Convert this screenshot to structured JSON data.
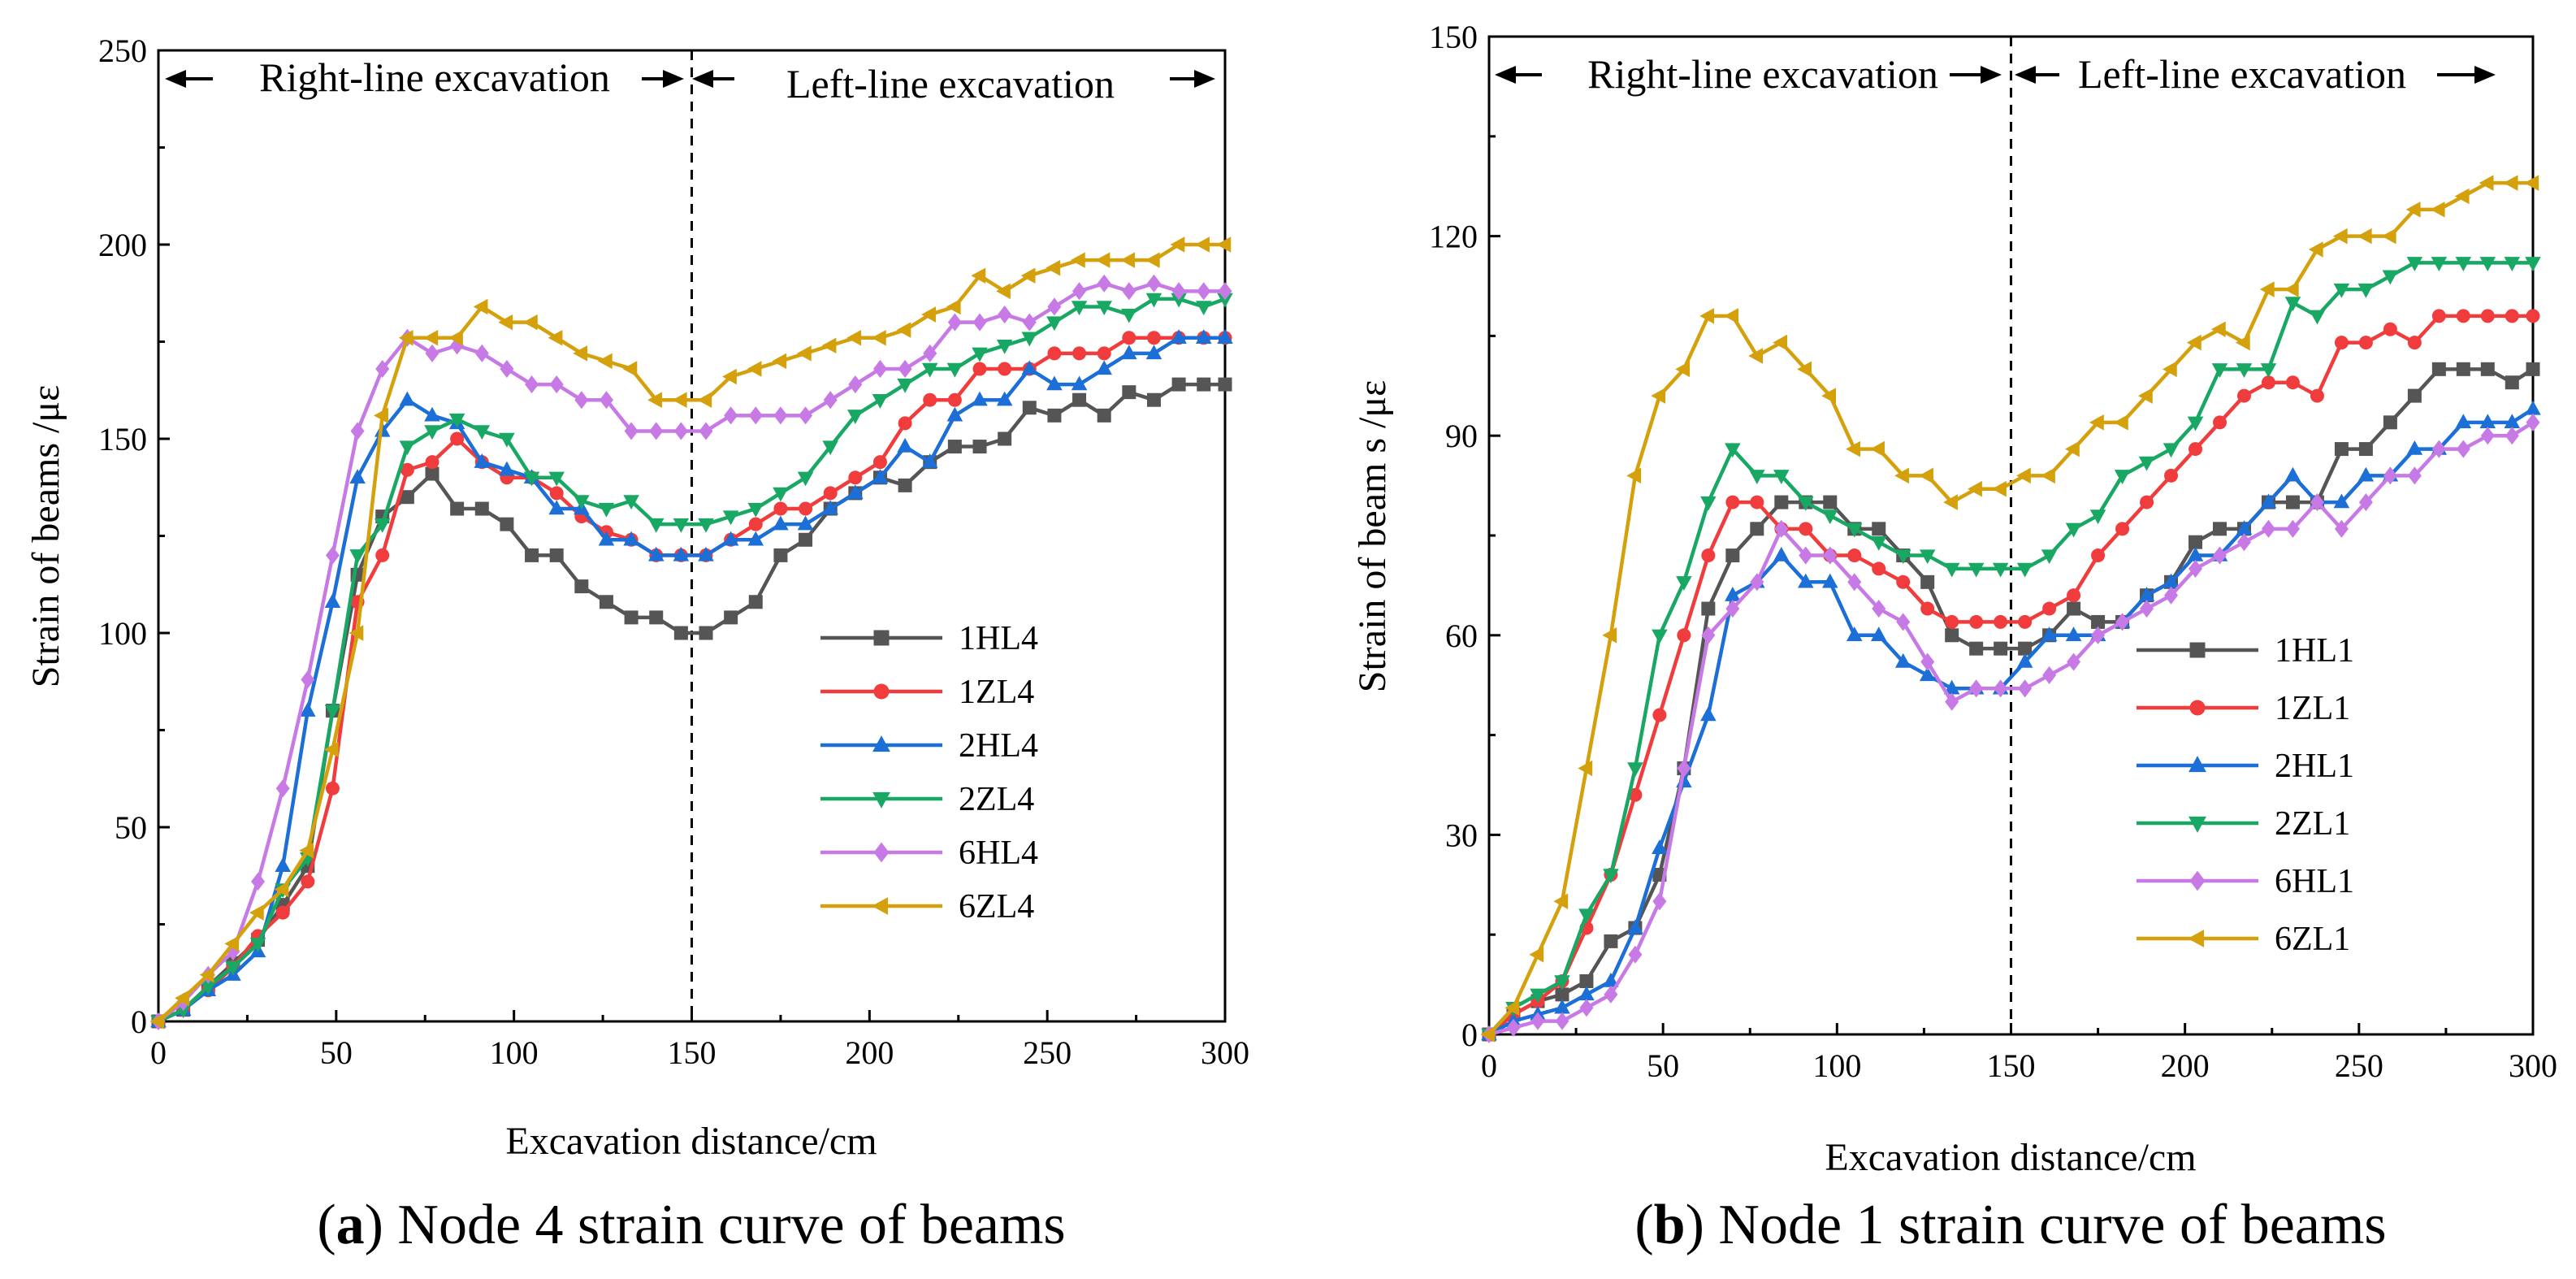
{
  "chart_data": [
    {
      "type": "line",
      "panel_letter": "a",
      "caption": ") Node 4 strain curve of beams",
      "caption_open": "(",
      "xlabel": "Excavation distance/cm",
      "ylabel": "Strain of beams /με",
      "xlim": [
        0,
        300
      ],
      "ylim": [
        0,
        250
      ],
      "xticks": [
        0,
        50,
        100,
        150,
        200,
        250,
        300
      ],
      "yticks": [
        0,
        50,
        100,
        150,
        200,
        250
      ],
      "divider_x": 150,
      "annotations": {
        "left": "Right-line excavation",
        "right": "Left-line excavation"
      },
      "legend_position": "right-center",
      "x": [
        0,
        7,
        14,
        21,
        28,
        35,
        42,
        49,
        56,
        63,
        70,
        77,
        84,
        91,
        98,
        105,
        112,
        119,
        126,
        133,
        140,
        147,
        154,
        161,
        168,
        175,
        182,
        189,
        196,
        203,
        210,
        217,
        224,
        231,
        238,
        245,
        252,
        259,
        266,
        273,
        280,
        287,
        294,
        300
      ],
      "series": [
        {
          "name": "1HL4",
          "color": "#555555",
          "marker": "square",
          "values": [
            0,
            3,
            9,
            15,
            21,
            30,
            40,
            80,
            115,
            130,
            135,
            141,
            132,
            132,
            128,
            120,
            120,
            112,
            108,
            104,
            104,
            100,
            100,
            104,
            108,
            120,
            124,
            132,
            136,
            140,
            138,
            144,
            148,
            148,
            150,
            158,
            156,
            160,
            156,
            162,
            160,
            164,
            164,
            164
          ]
        },
        {
          "name": "1ZL4",
          "color": "#f03c3c",
          "marker": "circle",
          "values": [
            0,
            3,
            8,
            14,
            22,
            28,
            36,
            60,
            108,
            120,
            142,
            144,
            150,
            144,
            140,
            140,
            136,
            130,
            126,
            124,
            120,
            120,
            120,
            124,
            128,
            132,
            132,
            136,
            140,
            144,
            154,
            160,
            160,
            168,
            168,
            168,
            172,
            172,
            172,
            176,
            176,
            176,
            176,
            176
          ]
        },
        {
          "name": "2HL4",
          "color": "#1c6fd6",
          "marker": "triangle-up",
          "values": [
            0,
            3,
            8,
            12,
            18,
            40,
            80,
            108,
            140,
            152,
            160,
            156,
            154,
            144,
            142,
            140,
            132,
            132,
            124,
            124,
            120,
            120,
            120,
            124,
            124,
            128,
            128,
            132,
            136,
            140,
            148,
            144,
            156,
            160,
            160,
            168,
            164,
            164,
            168,
            172,
            172,
            176,
            176,
            176
          ]
        },
        {
          "name": "2ZL4",
          "color": "#19a864",
          "marker": "triangle-down",
          "values": [
            0,
            3,
            9,
            14,
            20,
            34,
            42,
            80,
            120,
            128,
            148,
            152,
            155,
            152,
            150,
            140,
            140,
            134,
            132,
            134,
            128,
            128,
            128,
            130,
            132,
            136,
            140,
            148,
            156,
            160,
            164,
            168,
            168,
            172,
            174,
            176,
            180,
            184,
            184,
            182,
            186,
            186,
            184,
            186
          ]
        },
        {
          "name": "6HL4",
          "color": "#c77ae6",
          "marker": "diamond",
          "values": [
            0,
            5,
            12,
            18,
            36,
            60,
            88,
            120,
            152,
            168,
            176,
            172,
            174,
            172,
            168,
            164,
            164,
            160,
            160,
            152,
            152,
            152,
            152,
            156,
            156,
            156,
            156,
            160,
            164,
            168,
            168,
            172,
            180,
            180,
            182,
            180,
            184,
            188,
            190,
            188,
            190,
            188,
            188,
            188
          ]
        },
        {
          "name": "6ZL4",
          "color": "#d4a10c",
          "marker": "triangle-left",
          "values": [
            0,
            6,
            12,
            20,
            28,
            34,
            44,
            70,
            100,
            156,
            176,
            176,
            176,
            184,
            180,
            180,
            176,
            172,
            170,
            168,
            160,
            160,
            160,
            166,
            168,
            170,
            172,
            174,
            176,
            176,
            178,
            182,
            184,
            192,
            188,
            192,
            194,
            196,
            196,
            196,
            196,
            200,
            200,
            200
          ]
        }
      ]
    },
    {
      "type": "line",
      "panel_letter": "b",
      "caption": ") Node 1 strain curve of beams",
      "caption_open": "(",
      "xlabel": "Excavation distance/cm",
      "ylabel": "Strain of beam s /με",
      "xlim": [
        0,
        300
      ],
      "ylim": [
        0,
        150
      ],
      "xticks": [
        0,
        50,
        100,
        150,
        200,
        250,
        300
      ],
      "yticks": [
        0,
        30,
        60,
        90,
        120,
        150
      ],
      "divider_x": 150,
      "annotations": {
        "left": "Right-line excavation",
        "right": "Left-line excavation"
      },
      "legend_position": "right-center",
      "x": [
        0,
        7,
        14,
        21,
        28,
        35,
        42,
        49,
        56,
        63,
        70,
        77,
        84,
        91,
        98,
        105,
        112,
        119,
        126,
        133,
        140,
        147,
        154,
        161,
        168,
        175,
        182,
        189,
        196,
        203,
        210,
        217,
        224,
        231,
        238,
        245,
        252,
        259,
        266,
        273,
        280,
        287,
        294,
        300
      ],
      "series": [
        {
          "name": "1HL1",
          "color": "#555555",
          "marker": "square",
          "values": [
            0,
            3,
            5,
            6,
            8,
            14,
            16,
            24,
            40,
            64,
            72,
            76,
            80,
            80,
            80,
            76,
            76,
            72,
            68,
            60,
            58,
            58,
            58,
            60,
            64,
            62,
            62,
            66,
            68,
            74,
            76,
            76,
            80,
            80,
            80,
            88,
            88,
            92,
            96,
            100,
            100,
            100,
            98,
            100
          ]
        },
        {
          "name": "1ZL1",
          "color": "#f03c3c",
          "marker": "circle",
          "values": [
            0,
            3,
            5,
            8,
            16,
            24,
            36,
            48,
            60,
            72,
            80,
            80,
            76,
            76,
            72,
            72,
            70,
            68,
            64,
            62,
            62,
            62,
            62,
            64,
            66,
            72,
            76,
            80,
            84,
            88,
            92,
            96,
            98,
            98,
            96,
            104,
            104,
            106,
            104,
            108,
            108,
            108,
            108,
            108
          ]
        },
        {
          "name": "2HL1",
          "color": "#1c6fd6",
          "marker": "triangle-up",
          "values": [
            0,
            2,
            3,
            4,
            6,
            8,
            16,
            28,
            38,
            48,
            66,
            68,
            72,
            68,
            68,
            60,
            60,
            56,
            54,
            52,
            52,
            52,
            56,
            60,
            60,
            60,
            62,
            66,
            68,
            72,
            72,
            76,
            80,
            84,
            80,
            80,
            84,
            84,
            88,
            88,
            92,
            92,
            92,
            94
          ]
        },
        {
          "name": "2ZL1",
          "color": "#19a864",
          "marker": "triangle-down",
          "values": [
            0,
            4,
            6,
            8,
            18,
            24,
            40,
            60,
            68,
            80,
            88,
            84,
            84,
            80,
            78,
            76,
            74,
            72,
            72,
            70,
            70,
            70,
            70,
            72,
            76,
            78,
            84,
            86,
            88,
            92,
            100,
            100,
            100,
            110,
            108,
            112,
            112,
            114,
            116,
            116,
            116,
            116,
            116,
            116
          ]
        },
        {
          "name": "6HL1",
          "color": "#c77ae6",
          "marker": "diamond",
          "values": [
            0,
            1,
            2,
            2,
            4,
            6,
            12,
            20,
            40,
            60,
            64,
            68,
            76,
            72,
            72,
            68,
            64,
            62,
            56,
            50,
            52,
            52,
            52,
            54,
            56,
            60,
            62,
            64,
            66,
            70,
            72,
            74,
            76,
            76,
            80,
            76,
            80,
            84,
            84,
            88,
            88,
            90,
            90,
            92
          ]
        },
        {
          "name": "6ZL1",
          "color": "#d4a10c",
          "marker": "triangle-left",
          "values": [
            0,
            4,
            12,
            20,
            40,
            60,
            84,
            96,
            100,
            108,
            108,
            102,
            104,
            100,
            96,
            88,
            88,
            84,
            84,
            80,
            82,
            82,
            84,
            84,
            88,
            92,
            92,
            96,
            100,
            104,
            106,
            104,
            112,
            112,
            118,
            120,
            120,
            120,
            124,
            124,
            126,
            128,
            128,
            128
          ]
        }
      ]
    }
  ]
}
